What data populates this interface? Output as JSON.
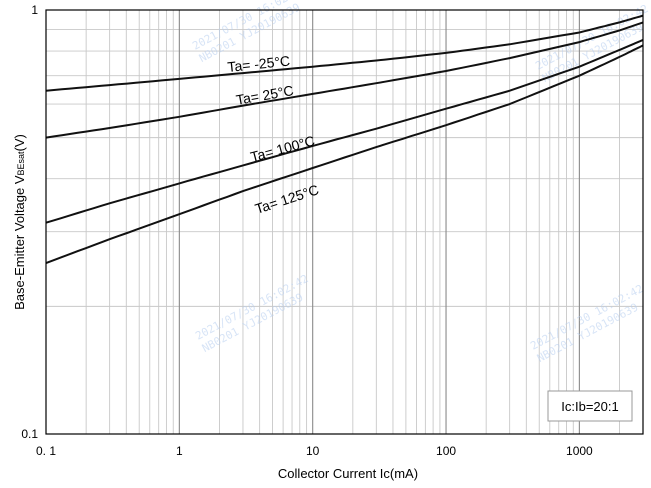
{
  "chart_data": {
    "type": "line",
    "xscale": "log",
    "yscale": "log",
    "xlim": [
      0.1,
      3000
    ],
    "ylim": [
      0.1,
      1
    ],
    "xlabel": "Collector Current  Ic(mA)",
    "ylabel_main": "Base-Emitter Voltage  V",
    "ylabel_sub": "BEsat",
    "ylabel_end": "(V)",
    "x_tick_labels": [
      {
        "value": 0.1,
        "label": "0. 1"
      },
      {
        "value": 1,
        "label": "1"
      },
      {
        "value": 10,
        "label": "10"
      },
      {
        "value": 100,
        "label": "100"
      },
      {
        "value": 1000,
        "label": "1000"
      }
    ],
    "y_tick_labels": [
      {
        "value": 1,
        "label": "1"
      },
      {
        "value": 0.1,
        "label": "0.1"
      }
    ],
    "grid": true,
    "series": [
      {
        "name": "Ta= -25°C",
        "points": [
          [
            0.1,
            0.645
          ],
          [
            0.3,
            0.665
          ],
          [
            1,
            0.688
          ],
          [
            3,
            0.71
          ],
          [
            10,
            0.735
          ],
          [
            30,
            0.76
          ],
          [
            100,
            0.792
          ],
          [
            300,
            0.83
          ],
          [
            1000,
            0.885
          ],
          [
            2000,
            0.935
          ],
          [
            3000,
            0.97
          ]
        ]
      },
      {
        "name": "Ta= 25°C",
        "points": [
          [
            0.1,
            0.5
          ],
          [
            0.3,
            0.527
          ],
          [
            1,
            0.56
          ],
          [
            3,
            0.595
          ],
          [
            10,
            0.634
          ],
          [
            30,
            0.672
          ],
          [
            100,
            0.718
          ],
          [
            300,
            0.77
          ],
          [
            1000,
            0.84
          ],
          [
            2000,
            0.895
          ],
          [
            3000,
            0.935
          ]
        ]
      },
      {
        "name": "Ta= 100°C",
        "points": [
          [
            0.1,
            0.315
          ],
          [
            0.3,
            0.35
          ],
          [
            1,
            0.39
          ],
          [
            3,
            0.43
          ],
          [
            10,
            0.478
          ],
          [
            30,
            0.525
          ],
          [
            100,
            0.585
          ],
          [
            300,
            0.645
          ],
          [
            1000,
            0.735
          ],
          [
            2000,
            0.805
          ],
          [
            3000,
            0.85
          ]
        ]
      },
      {
        "name": "Ta= 125°C",
        "points": [
          [
            0.1,
            0.253
          ],
          [
            0.3,
            0.288
          ],
          [
            1,
            0.33
          ],
          [
            3,
            0.374
          ],
          [
            10,
            0.424
          ],
          [
            30,
            0.475
          ],
          [
            100,
            0.535
          ],
          [
            300,
            0.6
          ],
          [
            1000,
            0.7
          ],
          [
            2000,
            0.775
          ],
          [
            3000,
            0.825
          ]
        ]
      }
    ],
    "annotation": "Ic:Ib=20:1",
    "watermark_lines": [
      "2021/07/30 16:02:42",
      "NB0201 YJ20190639"
    ]
  }
}
